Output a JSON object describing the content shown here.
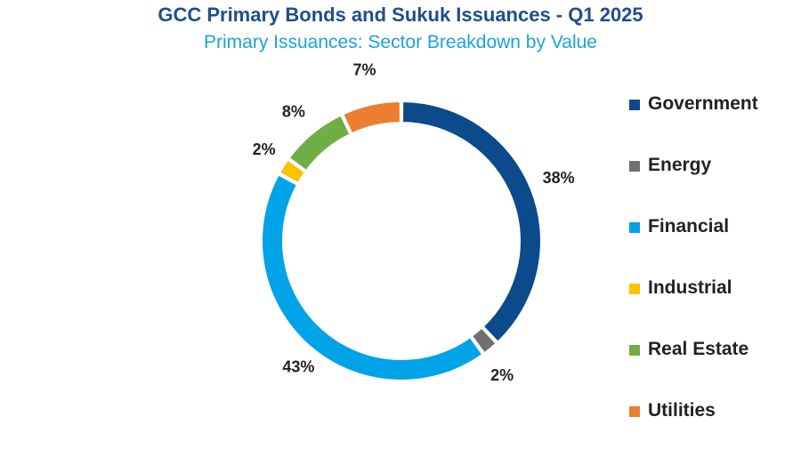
{
  "chart_data": {
    "type": "pie",
    "variant": "donut",
    "title": "GCC Primary Bonds and Sukuk Issuances - Q1 2025",
    "subtitle": "Primary Issuances: Sector Breakdown by Value",
    "legend_position": "right",
    "start_angle_deg": 0,
    "direction": "clockwise",
    "slices": [
      {
        "name": "Government",
        "value": 38,
        "label": "38%",
        "color": "#0b4a8b"
      },
      {
        "name": "Energy",
        "value": 2,
        "label": "2%",
        "color": "#707070"
      },
      {
        "name": "Financial",
        "value": 43,
        "label": "43%",
        "color": "#00a3e8"
      },
      {
        "name": "Industrial",
        "value": 2,
        "label": "2%",
        "color": "#ffc000"
      },
      {
        "name": "Real Estate",
        "value": 8,
        "label": "8%",
        "color": "#70ad47"
      },
      {
        "name": "Utilities",
        "value": 7,
        "label": "7%",
        "color": "#ed7d31"
      }
    ]
  }
}
